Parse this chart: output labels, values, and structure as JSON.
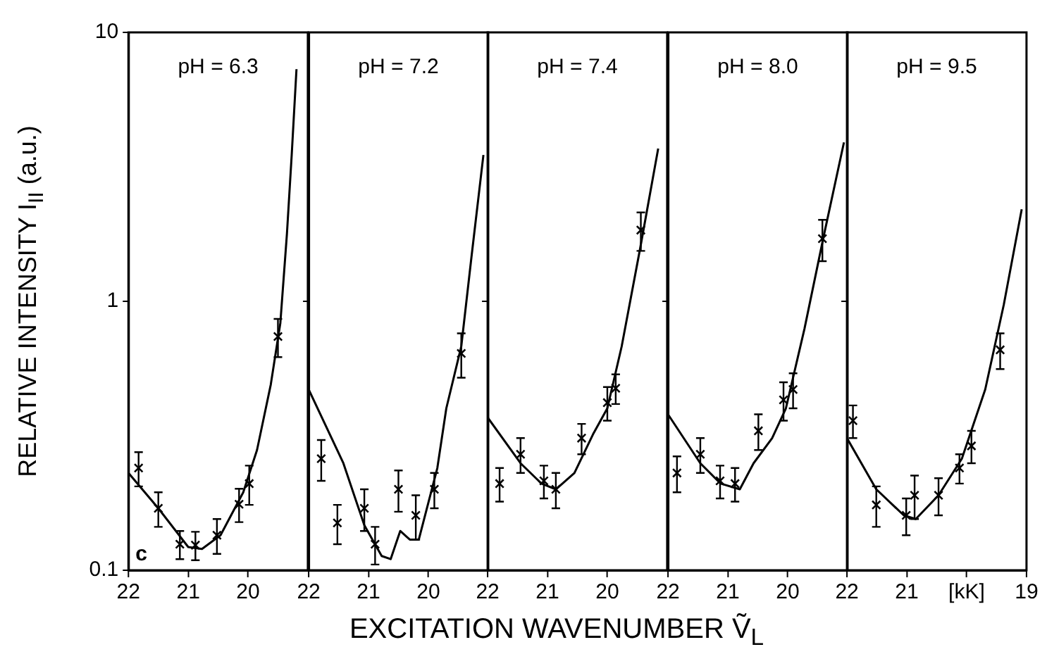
{
  "chart_data": [
    {
      "type": "scatter",
      "title": "pH = 6.3",
      "ylabel": "RELATIVE INTENSITY I$_{II}$ (a.u.)",
      "annotations": [
        "c"
      ],
      "log": "y",
      "xlim": [
        22,
        19
      ],
      "xticks": [
        22,
        21,
        20
      ],
      "ylim": [
        0.1,
        10
      ],
      "yticks": [
        0.1,
        1,
        10
      ],
      "series": [
        {
          "type": "scatter",
          "marker": "cross",
          "color": "#000000",
          "x": [
            21.83,
            21.5,
            21.14,
            20.88,
            20.52,
            20.15,
            19.98,
            19.5
          ],
          "values": [
            0.24,
            0.17,
            0.125,
            0.124,
            0.135,
            0.176,
            0.21,
            0.74
          ],
          "errors": [
            0.035,
            0.025,
            0.015,
            0.015,
            0.02,
            0.025,
            0.035,
            0.12
          ]
        },
        {
          "type": "line",
          "color": "#000000",
          "x": [
            22,
            21.5,
            21,
            20.77,
            20.46,
            20.08,
            19.85,
            19.62,
            19.46,
            19.35,
            19.27,
            19.19
          ],
          "values": [
            0.23,
            0.17,
            0.122,
            0.12,
            0.135,
            0.195,
            0.28,
            0.49,
            0.83,
            1.78,
            3.5,
            7.3
          ]
        }
      ]
    },
    {
      "type": "scatter",
      "title": "pH = 7.2",
      "tick_labels": "x",
      "log": "y",
      "xlim": [
        22,
        19
      ],
      "xticks": [
        22,
        21,
        20
      ],
      "ylim": [
        0.1,
        10
      ],
      "yticks": [
        0.1,
        1,
        10
      ],
      "series": [
        {
          "type": "scatter",
          "marker": "cross",
          "color": "#000000",
          "x": [
            21.79,
            21.52,
            21.07,
            20.89,
            20.5,
            20.21,
            19.9,
            19.45
          ],
          "values": [
            0.26,
            0.15,
            0.17,
            0.125,
            0.2,
            0.16,
            0.2,
            0.64
          ],
          "errors": [
            0.045,
            0.025,
            0.03,
            0.02,
            0.035,
            0.03,
            0.03,
            0.12
          ]
        },
        {
          "type": "line",
          "color": "#000000",
          "x": [
            22,
            21.42,
            21.07,
            20.78,
            20.63,
            20.47,
            20.31,
            20.16,
            19.85,
            19.7,
            19.45,
            19.28,
            19.08
          ],
          "values": [
            0.47,
            0.25,
            0.147,
            0.113,
            0.11,
            0.14,
            0.13,
            0.13,
            0.24,
            0.4,
            0.68,
            1.46,
            3.5
          ]
        }
      ]
    },
    {
      "type": "scatter",
      "title": "pH = 7.4",
      "tick_labels": "x",
      "xlabel": "EXCITATION WAVENUMBER Ṽ$_{L}$",
      "log": "y",
      "xlim": [
        22,
        19
      ],
      "xticks": [
        22,
        21,
        20
      ],
      "ylim": [
        0.1,
        10
      ],
      "yticks": [
        0.1,
        1,
        10
      ],
      "series": [
        {
          "type": "scatter",
          "marker": "cross",
          "color": "#000000",
          "x": [
            21.8,
            21.45,
            21.06,
            20.86,
            20.43,
            20,
            19.86,
            19.44
          ],
          "values": [
            0.21,
            0.27,
            0.215,
            0.2,
            0.31,
            0.42,
            0.475,
            1.84
          ],
          "errors": [
            0.03,
            0.04,
            0.03,
            0.03,
            0.04,
            0.06,
            0.06,
            0.3
          ]
        },
        {
          "type": "line",
          "color": "#000000",
          "x": [
            22,
            21.45,
            21.1,
            20.86,
            20.55,
            20.24,
            20,
            19.76,
            19.45,
            19.15
          ],
          "values": [
            0.37,
            0.25,
            0.21,
            0.2,
            0.23,
            0.32,
            0.4,
            0.68,
            1.58,
            3.7
          ]
        }
      ]
    },
    {
      "type": "scatter",
      "title": "pH = 8.0",
      "tick_labels": "x",
      "log": "y",
      "xlim": [
        22,
        19
      ],
      "xticks": [
        22,
        21,
        20
      ],
      "ylim": [
        0.1,
        10
      ],
      "yticks": [
        0.1,
        1,
        10
      ],
      "series": [
        {
          "type": "scatter",
          "marker": "cross",
          "color": "#000000",
          "x": [
            21.85,
            21.46,
            21.13,
            20.88,
            20.49,
            20.07,
            19.91,
            19.42
          ],
          "values": [
            0.23,
            0.27,
            0.215,
            0.21,
            0.33,
            0.43,
            0.47,
            1.71
          ],
          "errors": [
            0.035,
            0.04,
            0.03,
            0.03,
            0.05,
            0.07,
            0.07,
            0.3
          ]
        },
        {
          "type": "line",
          "color": "#000000",
          "x": [
            22,
            21.46,
            21.12,
            20.8,
            20.57,
            20.26,
            20.03,
            19.72,
            19.4,
            19.06
          ],
          "values": [
            0.38,
            0.25,
            0.21,
            0.2,
            0.25,
            0.31,
            0.4,
            0.79,
            1.74,
            3.9
          ]
        }
      ]
    },
    {
      "type": "scatter",
      "title": "pH = 9.5",
      "tick_labels": "x",
      "log": "y",
      "xlim": [
        22,
        19
      ],
      "xticks": [
        22,
        21,
        {
          "value": 20,
          "label": "[kK]"
        },
        19
      ],
      "ylim": [
        0.1,
        10
      ],
      "yticks": [
        0.1,
        1,
        10
      ],
      "series": [
        {
          "type": "scatter",
          "marker": "cross",
          "color": "#000000",
          "x": [
            21.9,
            21.51,
            21.01,
            20.87,
            20.47,
            20.12,
            19.92,
            19.44
          ],
          "values": [
            0.36,
            0.175,
            0.16,
            0.19,
            0.19,
            0.24,
            0.29,
            0.66
          ],
          "errors": [
            0.05,
            0.03,
            0.025,
            0.035,
            0.03,
            0.03,
            0.04,
            0.1
          ]
        },
        {
          "type": "line",
          "color": "#000000",
          "x": [
            22,
            21.51,
            21.05,
            20.85,
            20.47,
            20.08,
            19.69,
            19.38,
            19.08
          ],
          "values": [
            0.31,
            0.2,
            0.16,
            0.155,
            0.19,
            0.26,
            0.47,
            0.97,
            2.2
          ]
        }
      ]
    }
  ]
}
